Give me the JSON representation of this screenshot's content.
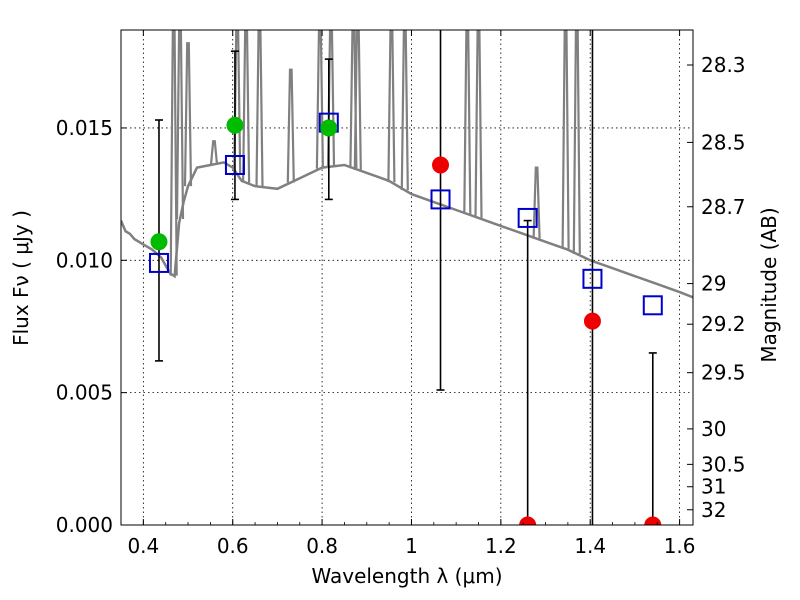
{
  "chart_data": {
    "type": "scatter",
    "xlabel": "Wavelength  λ (μm)",
    "ylabel": "Flux  Fν  ( μJy )",
    "y2label": "Magnitude (AB)",
    "xlim": [
      0.35,
      1.63
    ],
    "ylim": [
      0.0,
      0.0187
    ],
    "grid": true,
    "x_ticks": [
      0.4,
      0.6,
      0.8,
      1.0,
      1.2,
      1.4,
      1.6
    ],
    "x_tick_labels": [
      "0.4",
      "0.6",
      "0.8",
      "1",
      "1.2",
      "1.4",
      "1.6"
    ],
    "y_ticks": [
      0.0,
      0.005,
      0.01,
      0.015
    ],
    "y_tick_labels": [
      "0.000",
      "0.005",
      "0.010",
      "0.015"
    ],
    "mag_ticks": [
      28.3,
      28.5,
      28.7,
      29,
      29.2,
      29.5,
      30,
      30.5,
      31,
      32
    ],
    "mag_tick_labels": [
      "28.3",
      "28.5",
      "28.7",
      "29",
      "29.2",
      "29.5",
      "30",
      "30.5",
      "31",
      "32"
    ],
    "colors": {
      "model": "#808080",
      "model_phot": "#0000cc",
      "detected": "#00bb00",
      "nondetected": "#ee0000",
      "errorbar": "#000000"
    },
    "model_spectrum": {
      "x": [
        0.35,
        0.36,
        0.37,
        0.38,
        0.4,
        0.42,
        0.44,
        0.45,
        0.46,
        0.47,
        0.48,
        0.49,
        0.5,
        0.52,
        0.55,
        0.58,
        0.6,
        0.62,
        0.65,
        0.7,
        0.75,
        0.8,
        0.85,
        0.9,
        0.95,
        1.0,
        1.05,
        1.1,
        1.15,
        1.2,
        1.25,
        1.3,
        1.35,
        1.4,
        1.45,
        1.5,
        1.55,
        1.6,
        1.63
      ],
      "y": [
        0.0115,
        0.0111,
        0.011,
        0.0108,
        0.0106,
        0.0104,
        0.0101,
        0.0098,
        0.0095,
        0.0094,
        0.0114,
        0.0122,
        0.0128,
        0.0135,
        0.0136,
        0.0137,
        0.0135,
        0.013,
        0.0128,
        0.0127,
        0.0131,
        0.0135,
        0.0136,
        0.0133,
        0.013,
        0.0125,
        0.0122,
        0.0119,
        0.0116,
        0.0113,
        0.011,
        0.0107,
        0.0104,
        0.01,
        0.0097,
        0.0094,
        0.0091,
        0.0088,
        0.0086
      ]
    },
    "emission_lines": [
      {
        "x": 0.468,
        "peak": 0.0187
      },
      {
        "x": 0.482,
        "peak": 0.0187
      },
      {
        "x": 0.5,
        "peak": 0.0182
      },
      {
        "x": 0.558,
        "peak": 0.0145
      },
      {
        "x": 0.61,
        "peak": 0.0187
      },
      {
        "x": 0.63,
        "peak": 0.0187
      },
      {
        "x": 0.66,
        "peak": 0.0187
      },
      {
        "x": 0.73,
        "peak": 0.0172
      },
      {
        "x": 0.795,
        "peak": 0.0187
      },
      {
        "x": 0.82,
        "peak": 0.0187
      },
      {
        "x": 0.87,
        "peak": 0.0187
      },
      {
        "x": 0.88,
        "peak": 0.0187
      },
      {
        "x": 0.955,
        "peak": 0.0187
      },
      {
        "x": 0.985,
        "peak": 0.0187
      },
      {
        "x": 1.125,
        "peak": 0.0187
      },
      {
        "x": 1.15,
        "peak": 0.0187
      },
      {
        "x": 1.28,
        "peak": 0.0135
      },
      {
        "x": 1.345,
        "peak": 0.0187
      },
      {
        "x": 1.37,
        "peak": 0.0187
      }
    ],
    "model_photometry": {
      "x": [
        0.435,
        0.605,
        0.815,
        1.065,
        1.26,
        1.405,
        1.54
      ],
      "y": [
        0.0099,
        0.0136,
        0.0152,
        0.0123,
        0.0116,
        0.0093,
        0.0083
      ]
    },
    "observed": {
      "x": [
        0.435,
        0.605,
        0.815,
        1.065,
        1.26,
        1.405,
        1.54
      ],
      "y": [
        0.0107,
        0.0151,
        0.015,
        0.0136,
        0.0,
        0.0077,
        0.0
      ],
      "err_low": [
        0.0062,
        0.0123,
        0.0123,
        0.0051,
        0.0,
        0.0,
        0.0
      ],
      "err_high": [
        0.0153,
        0.0179,
        0.0176,
        0.0187,
        0.0115,
        0.0187,
        0.0065
      ],
      "status": [
        "detected",
        "detected",
        "detected",
        "nondetected",
        "nondetected",
        "nondetected",
        "nondetected"
      ]
    }
  }
}
